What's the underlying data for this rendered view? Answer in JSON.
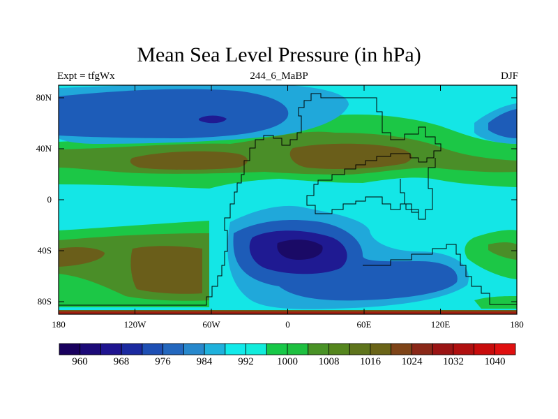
{
  "title": "Mean Sea Level Pressure (in hPa)",
  "subtitle_left": "Expt = tfgWx",
  "subtitle_center": "244_6_MaBP",
  "subtitle_right": "DJF",
  "lat_labels": [
    "80N",
    "40N",
    "0",
    "40S",
    "80S"
  ],
  "lon_labels": [
    "180",
    "120W",
    "60W",
    "0",
    "60E",
    "120E",
    "180"
  ],
  "colorbar": {
    "labels": [
      "960",
      "968",
      "976",
      "984",
      "992",
      "1000",
      "1008",
      "1016",
      "1024",
      "1032",
      "1040"
    ],
    "colors": [
      "#19005e",
      "#1c0a78",
      "#1f1490",
      "#1b2aa0",
      "#1e4fb4",
      "#2367be",
      "#2788cc",
      "#1fb1dc",
      "#12eaea",
      "#12ecdc",
      "#18c848",
      "#1ec040",
      "#499226",
      "#55861e",
      "#5e741c",
      "#6a6418",
      "#7e4418",
      "#8a2818",
      "#9a1414",
      "#b01010",
      "#c80c0c",
      "#e01010"
    ]
  },
  "colors": {
    "background_field": "#14e6e6",
    "low_1": "#20a8da",
    "low_2": "#1d5cb8",
    "low_3": "#1f1a92",
    "high_1": "#1cc746",
    "high_2": "#4a8e28",
    "high_3": "#6a5e1a"
  }
}
